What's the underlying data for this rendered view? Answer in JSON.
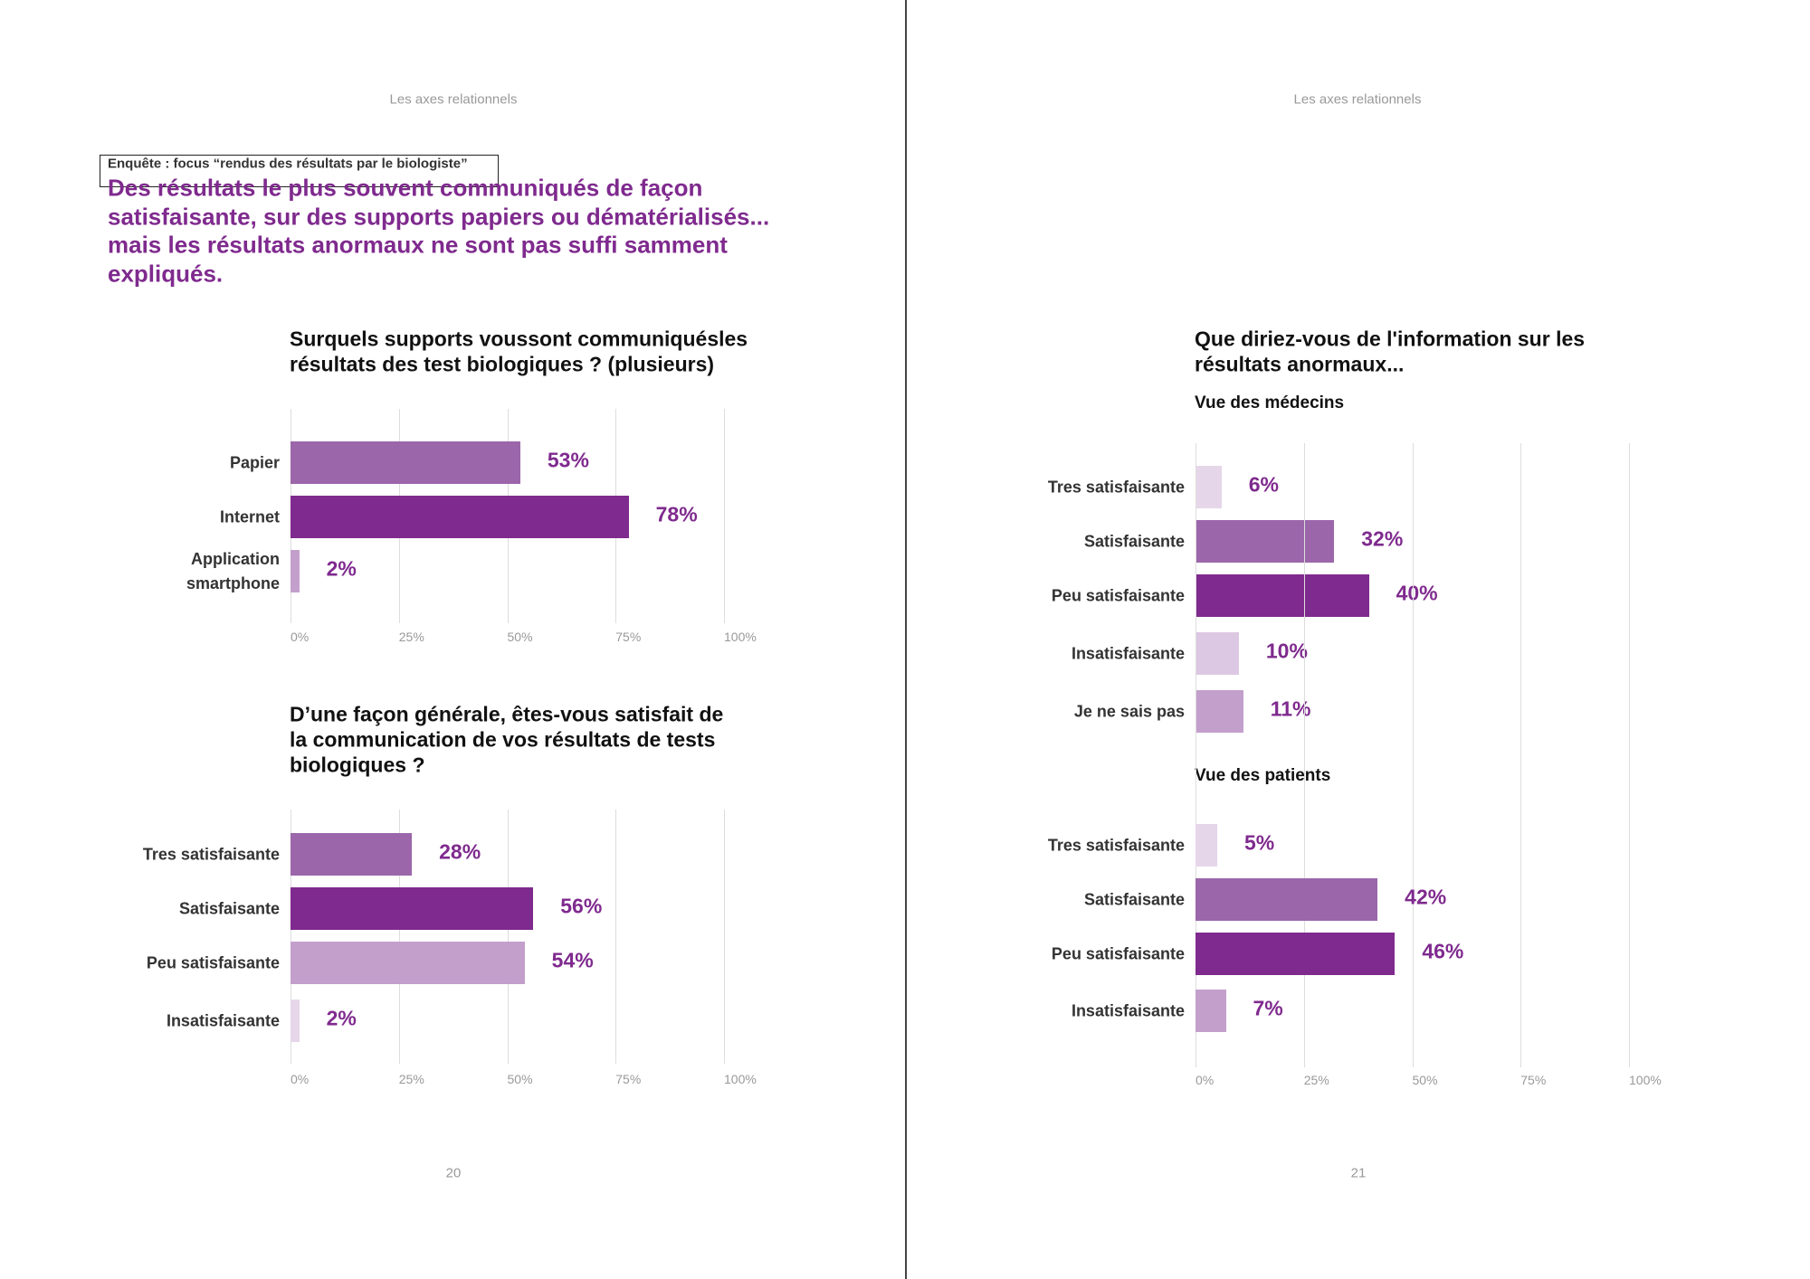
{
  "header": {
    "left": "Les axes relationnels",
    "right": "Les axes relationnels"
  },
  "kicker": "Enquête : focus “rendus des résultats par le biologiste”",
  "headline": [
    "Des résultats le plus souvent communiqués de façon",
    "satisfaisante, sur des supports papiers ou dématérialisés...",
    "mais les résultats anormaux ne sont pas suffi samment",
    "expliqués."
  ],
  "page_numbers": {
    "left": "20",
    "right": "21"
  },
  "chart_data": [
    {
      "type": "bar",
      "orientation": "horizontal",
      "title": [
        "Surquels supports voussont communiquésles",
        "résultats des test biologiques ? (plusieurs)"
      ],
      "categories": [
        "Papier",
        "Internet",
        "Application smartphone"
      ],
      "values": [
        53,
        78,
        2
      ],
      "value_labels": [
        "53%",
        "78%",
        "2%"
      ],
      "colors": [
        "#9b66aa",
        "#7f2a8e",
        "#c39fcc"
      ],
      "xlim": [
        0,
        100
      ],
      "xticks": [
        {
          "value": 0,
          "label": "0%"
        },
        {
          "value": 25,
          "label": "25%"
        },
        {
          "value": 50,
          "label": "50%"
        },
        {
          "value": 75,
          "label": "75%"
        },
        {
          "value": 100,
          "label": "100%"
        }
      ],
      "grid": true
    },
    {
      "type": "bar",
      "orientation": "horizontal",
      "title": [
        "D’une façon générale, êtes-vous satisfait de",
        "la communication de vos résultats de tests",
        "biologiques ?"
      ],
      "categories": [
        "Tres satisfaisante",
        "Satisfaisante",
        "Peu satisfaisante",
        "Insatisfaisante"
      ],
      "values": [
        28,
        56,
        54,
        2
      ],
      "value_labels": [
        "28%",
        "56%",
        "54%",
        "2%"
      ],
      "colors": [
        "#9b66aa",
        "#7f2a8e",
        "#c39fcc",
        "#e6d6ea"
      ],
      "xlim": [
        0,
        100
      ],
      "xticks": [
        {
          "value": 0,
          "label": "0%"
        },
        {
          "value": 25,
          "label": "25%"
        },
        {
          "value": 50,
          "label": "50%"
        },
        {
          "value": 75,
          "label": "75%"
        },
        {
          "value": 100,
          "label": "100%"
        }
      ],
      "grid": true
    },
    {
      "type": "bar",
      "orientation": "horizontal",
      "title": [
        "Que diriez-vous de l'information sur les",
        "résultats anormaux..."
      ],
      "subtitle": "Vue des médecins",
      "categories": [
        "Tres satisfaisante",
        "Satisfaisante",
        "Peu satisfaisante",
        "Insatisfaisante",
        "Je ne sais pas"
      ],
      "values": [
        6,
        32,
        40,
        10,
        11
      ],
      "value_labels": [
        "6%",
        "32%",
        "40%",
        "10%",
        "11%"
      ],
      "colors": [
        "#e6d6ea",
        "#9b66aa",
        "#7f2a8e",
        "#dcc8e3",
        "#c39fcc"
      ],
      "xlim": [
        0,
        100
      ]
    },
    {
      "type": "bar",
      "orientation": "horizontal",
      "subtitle": "Vue des patients",
      "categories": [
        "Tres satisfaisante",
        "Satisfaisante",
        "Peu satisfaisante",
        "Insatisfaisante"
      ],
      "values": [
        5,
        42,
        46,
        7
      ],
      "value_labels": [
        "5%",
        "42%",
        "46%",
        "7%"
      ],
      "colors": [
        "#e6d6ea",
        "#9b66aa",
        "#7f2a8e",
        "#c39fcc"
      ],
      "xlim": [
        0,
        100
      ],
      "xticks": [
        {
          "value": 0,
          "label": "0%"
        },
        {
          "value": 25,
          "label": "25%"
        },
        {
          "value": 50,
          "label": "50%"
        },
        {
          "value": 75,
          "label": "75%"
        },
        {
          "value": 100,
          "label": "100%"
        }
      ],
      "grid": true
    }
  ]
}
